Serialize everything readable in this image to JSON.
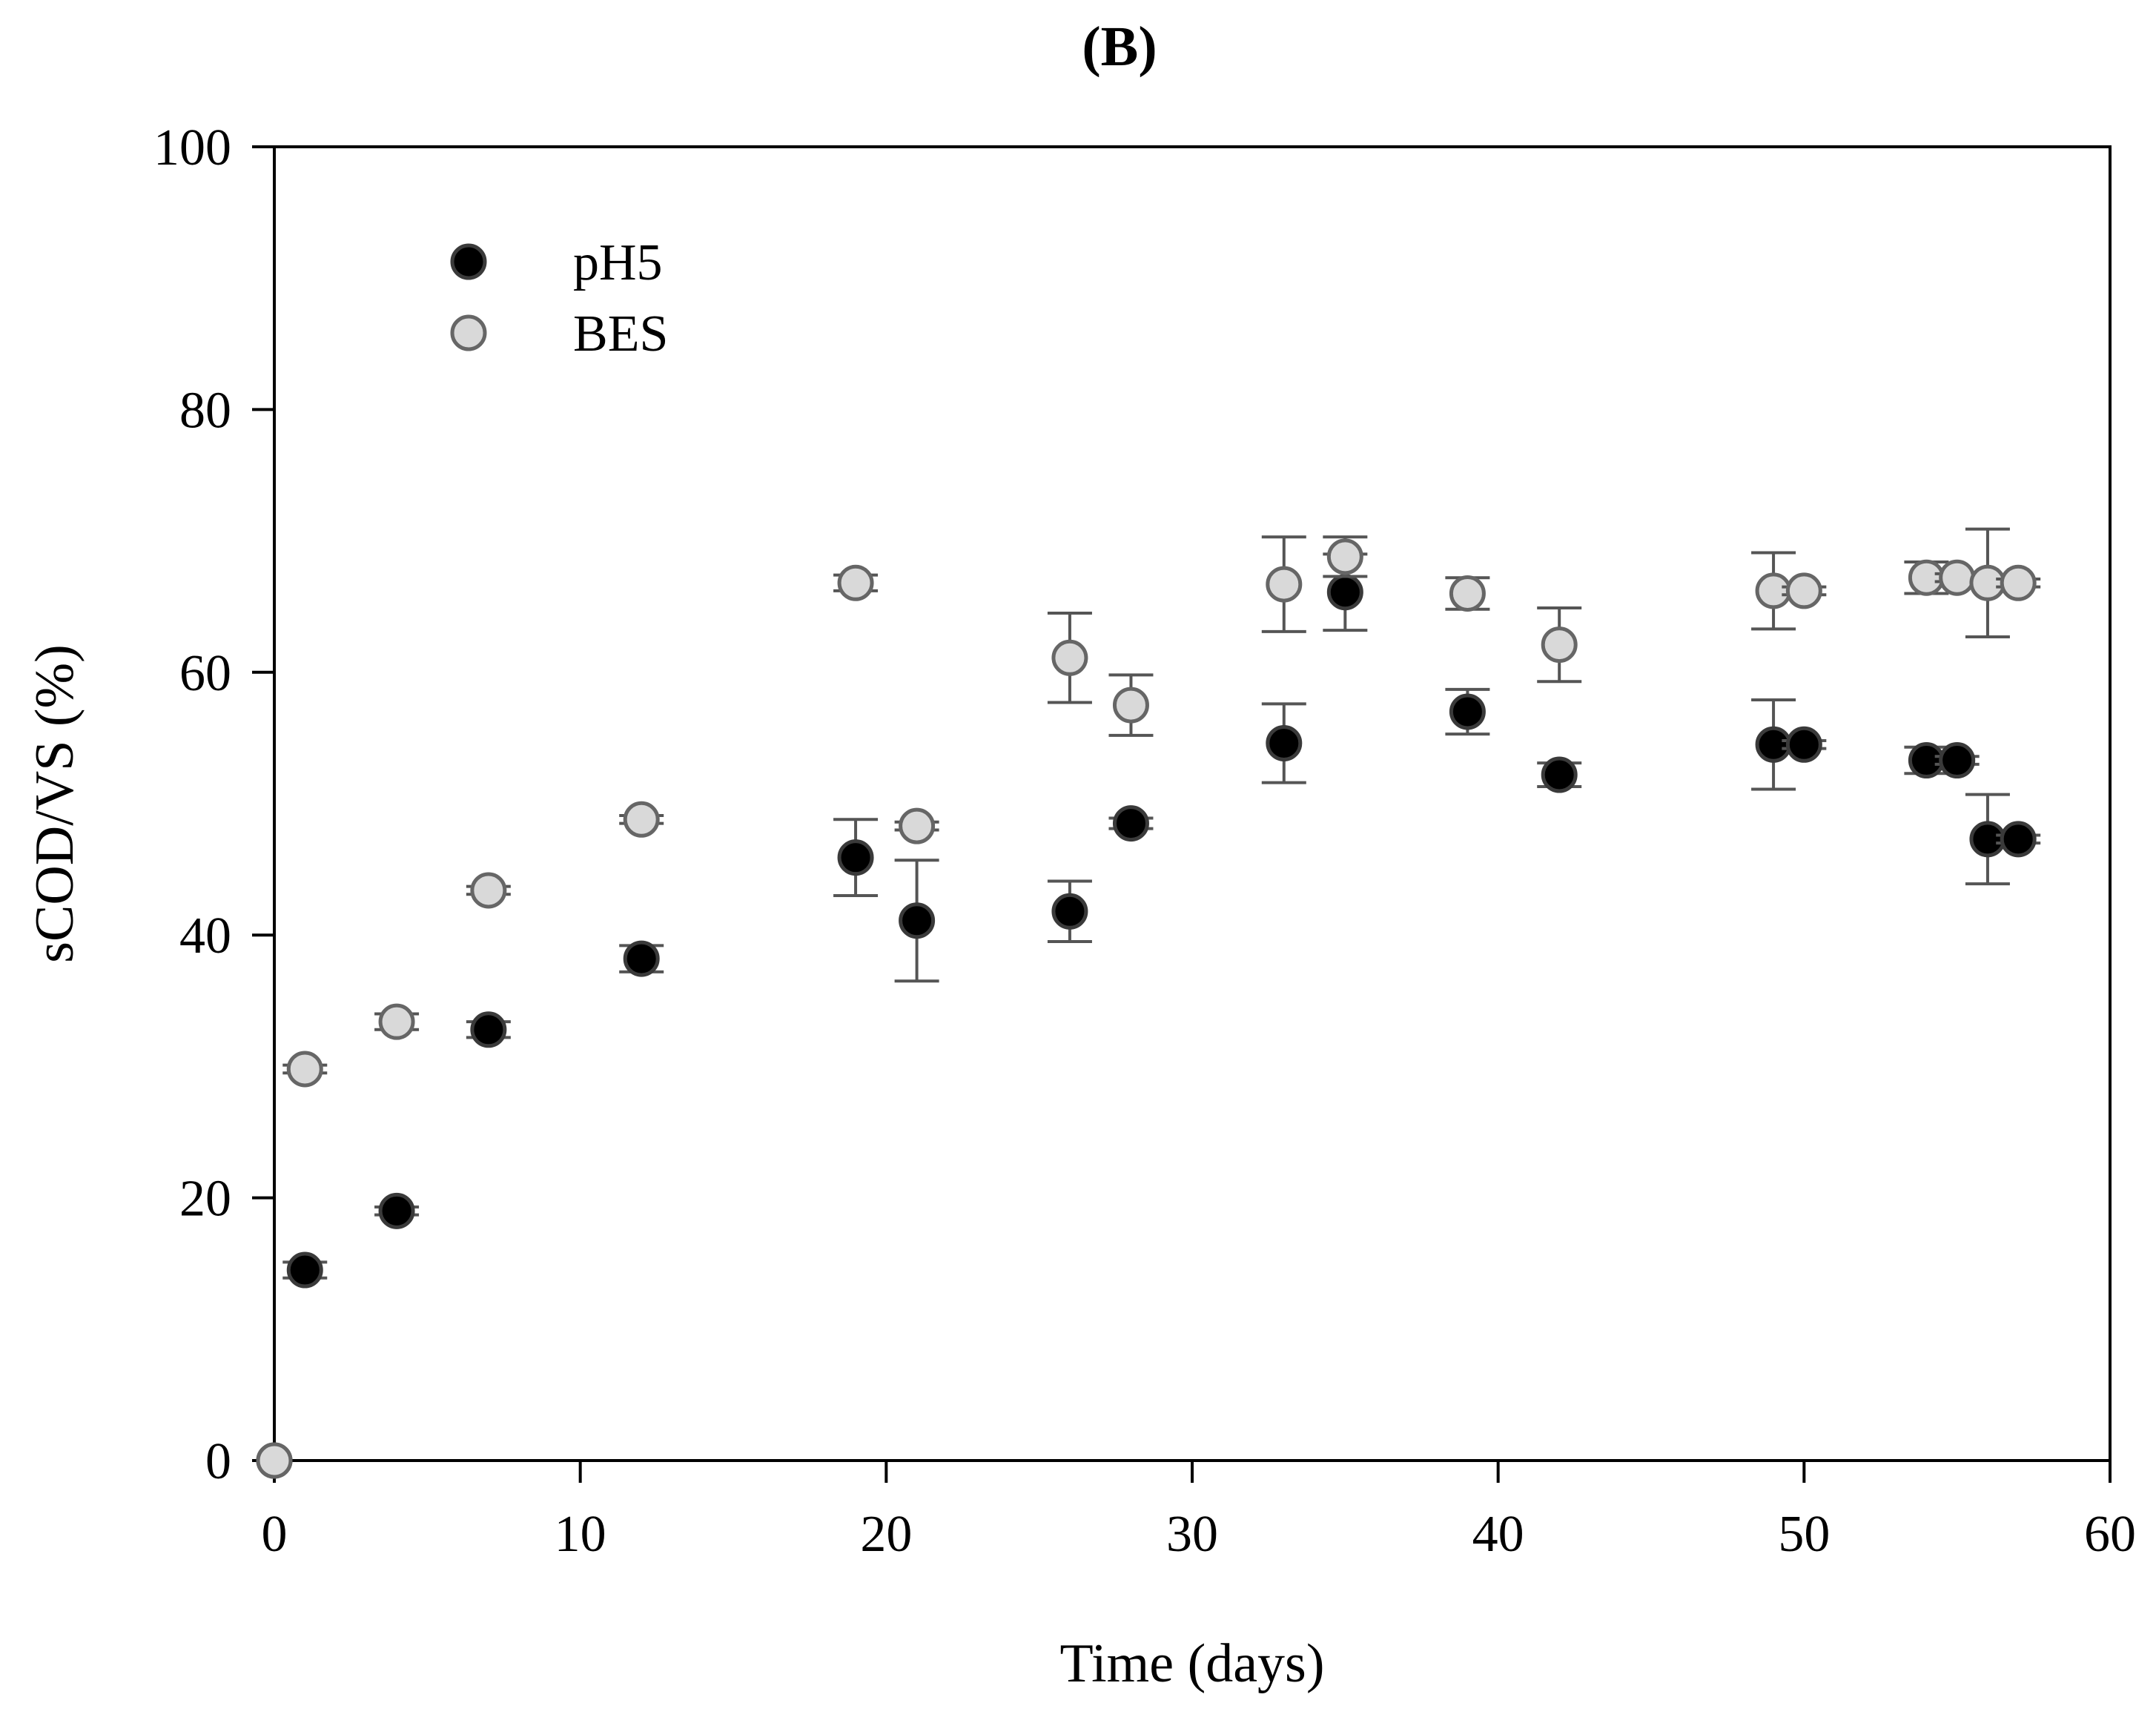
{
  "chart_data": {
    "type": "scatter",
    "title": "(B)",
    "xlabel": "Time (days)",
    "ylabel": "sCOD/VS (%)",
    "xlim": [
      0,
      60
    ],
    "ylim": [
      0,
      100
    ],
    "xticks": [
      0,
      10,
      20,
      30,
      40,
      50,
      60
    ],
    "yticks": [
      0,
      20,
      40,
      60,
      80,
      100
    ],
    "xtick_labels": [
      "0",
      "10",
      "20",
      "30",
      "40",
      "50",
      "60"
    ],
    "ytick_labels": [
      "0",
      "20",
      "40",
      "60",
      "80",
      "100"
    ],
    "grid": false,
    "legend_position": "top-left",
    "series": [
      {
        "name": "pH5",
        "fill": "#000000",
        "stroke": "#3a3a3a",
        "points": [
          {
            "x": 0,
            "y": 0,
            "err": 0
          },
          {
            "x": 1,
            "y": 14.5,
            "err": 0.6
          },
          {
            "x": 4,
            "y": 19.0,
            "err": 0.3
          },
          {
            "x": 7,
            "y": 32.8,
            "err": 0.6
          },
          {
            "x": 12,
            "y": 38.2,
            "err": 1.0
          },
          {
            "x": 19,
            "y": 45.9,
            "err": 2.9
          },
          {
            "x": 21,
            "y": 41.1,
            "err": 4.6
          },
          {
            "x": 26,
            "y": 41.8,
            "err": 2.3
          },
          {
            "x": 28,
            "y": 48.5,
            "err": 0.4
          },
          {
            "x": 33,
            "y": 54.6,
            "err": 3.0
          },
          {
            "x": 35,
            "y": 66.1,
            "err": 2.9
          },
          {
            "x": 39,
            "y": 57.0,
            "err": 1.7
          },
          {
            "x": 42,
            "y": 52.2,
            "err": 0.9
          },
          {
            "x": 49,
            "y": 54.5,
            "err": 3.4
          },
          {
            "x": 50,
            "y": 54.5,
            "err": 0.3
          },
          {
            "x": 54,
            "y": 53.3,
            "err": 1.0
          },
          {
            "x": 55,
            "y": 53.3,
            "err": 0.3
          },
          {
            "x": 56,
            "y": 47.3,
            "err": 3.4
          },
          {
            "x": 57,
            "y": 47.3,
            "err": 0.3
          }
        ]
      },
      {
        "name": "BES",
        "fill": "#d9d9d9",
        "stroke": "#666666",
        "points": [
          {
            "x": 0,
            "y": 0,
            "err": 0
          },
          {
            "x": 1,
            "y": 29.8,
            "err": 0.3
          },
          {
            "x": 4,
            "y": 33.4,
            "err": 0.6
          },
          {
            "x": 7,
            "y": 43.4,
            "err": 0.3
          },
          {
            "x": 12,
            "y": 48.8,
            "err": 0.3
          },
          {
            "x": 19,
            "y": 66.8,
            "err": 0.6
          },
          {
            "x": 21,
            "y": 48.3,
            "err": 0.3
          },
          {
            "x": 26,
            "y": 61.1,
            "err": 3.4
          },
          {
            "x": 28,
            "y": 57.5,
            "err": 2.3
          },
          {
            "x": 33,
            "y": 66.7,
            "err": 3.6
          },
          {
            "x": 35,
            "y": 68.8,
            "err": 1.5
          },
          {
            "x": 39,
            "y": 66.0,
            "err": 1.2
          },
          {
            "x": 42,
            "y": 62.1,
            "err": 2.8
          },
          {
            "x": 49,
            "y": 66.2,
            "err": 2.9
          },
          {
            "x": 50,
            "y": 66.2,
            "err": 0.3
          },
          {
            "x": 54,
            "y": 67.2,
            "err": 1.2
          },
          {
            "x": 55,
            "y": 67.2,
            "err": 0.3
          },
          {
            "x": 56,
            "y": 66.8,
            "err": 4.1
          },
          {
            "x": 57,
            "y": 66.8,
            "err": 0.3
          }
        ]
      }
    ]
  }
}
